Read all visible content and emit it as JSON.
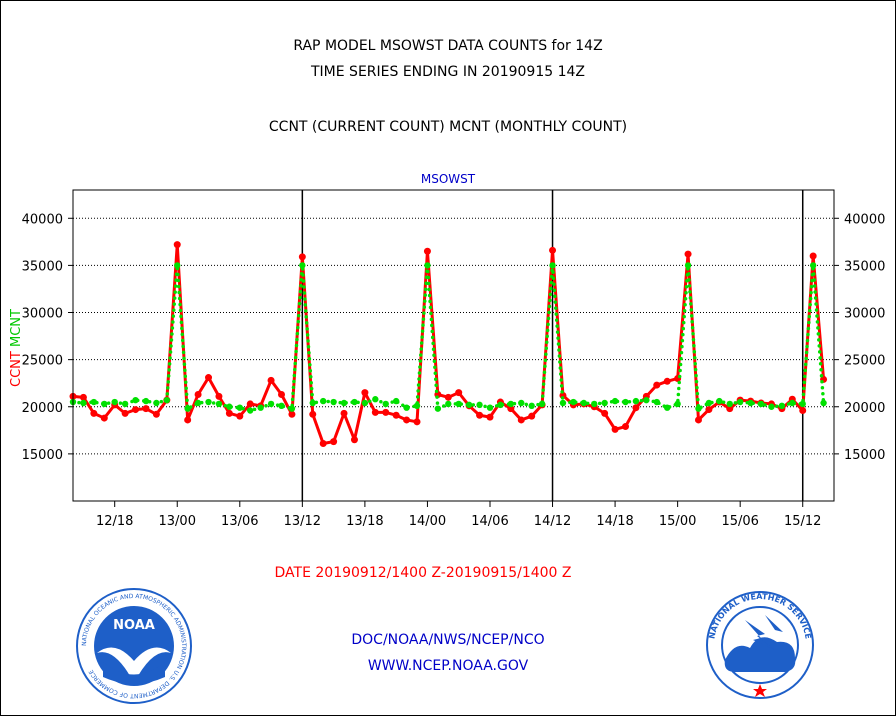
{
  "chart_data": {
    "type": "line",
    "title": [
      "RAP MODEL MSOWST DATA COUNTS for 14Z",
      "TIME SERIES ENDING IN 20190915 14Z"
    ],
    "subtitle": "CCNT (CURRENT COUNT) MCNT (MONTHLY COUNT)",
    "plot_label": "MSOWST",
    "ylabel_ccnt": "CCNT",
    "ylabel_mcnt": "MCNT",
    "xlabel": "DATE 20190912/1400 Z-20190915/1400 Z",
    "ylim": [
      10000,
      43000
    ],
    "yticks": [
      15000,
      20000,
      25000,
      30000,
      35000,
      40000
    ],
    "ytick_labels": [
      "15000",
      "20000",
      "25000",
      "30000",
      "35000",
      "40000"
    ],
    "xlim": [
      14,
      87
    ],
    "xticks": [
      18,
      24,
      30,
      36,
      42,
      48,
      54,
      60,
      66,
      72,
      78,
      84
    ],
    "xtick_labels": [
      "12/18",
      "13/00",
      "13/06",
      "13/12",
      "13/18",
      "14/00",
      "14/06",
      "14/12",
      "14/18",
      "15/00",
      "15/06",
      "15/12"
    ],
    "day_boundaries": [
      36,
      60,
      84
    ],
    "grid": true,
    "series": [
      {
        "name": "CCNT",
        "color": "#ff0000",
        "x": [
          14,
          15,
          16,
          17,
          18,
          19,
          20,
          21,
          22,
          23,
          24,
          25,
          26,
          27,
          28,
          29,
          30,
          31,
          32,
          33,
          34,
          35,
          36,
          37,
          38,
          39,
          40,
          41,
          42,
          43,
          44,
          45,
          46,
          47,
          48,
          49,
          50,
          51,
          52,
          53,
          54,
          55,
          56,
          57,
          58,
          59,
          60,
          61,
          62,
          63,
          64,
          65,
          66,
          67,
          68,
          69,
          70,
          71,
          72,
          73,
          74,
          75,
          76,
          77,
          78,
          79,
          80,
          81,
          82,
          83,
          84,
          85,
          86
        ],
        "values": [
          21100,
          21000,
          19300,
          18800,
          20200,
          19300,
          19700,
          19800,
          19200,
          20700,
          37200,
          18600,
          21300,
          23100,
          21100,
          19300,
          19000,
          20300,
          20100,
          22800,
          21300,
          19200,
          35900,
          19200,
          16100,
          16300,
          19300,
          16500,
          21500,
          19400,
          19400,
          19100,
          18600,
          18400,
          36500,
          21300,
          21000,
          21500,
          20100,
          19100,
          18900,
          20500,
          19800,
          18600,
          19000,
          20200,
          36600,
          21200,
          20200,
          20300,
          20000,
          19300,
          17600,
          17900,
          19900,
          21100,
          22300,
          22700,
          23000,
          36200,
          18600,
          19700,
          20500,
          19800,
          20700,
          20600,
          20400,
          20300,
          19800,
          20800,
          19600,
          36000,
          22900
        ]
      },
      {
        "name": "MCNT",
        "color": "#00e000",
        "x": [
          14,
          15,
          16,
          17,
          18,
          19,
          20,
          21,
          22,
          23,
          24,
          25,
          26,
          27,
          28,
          29,
          30,
          31,
          32,
          33,
          34,
          35,
          36,
          37,
          38,
          39,
          40,
          41,
          42,
          43,
          44,
          45,
          46,
          47,
          48,
          49,
          50,
          51,
          52,
          53,
          54,
          55,
          56,
          57,
          58,
          59,
          60,
          61,
          62,
          63,
          64,
          65,
          66,
          67,
          68,
          69,
          70,
          71,
          72,
          73,
          74,
          75,
          76,
          77,
          78,
          79,
          80,
          81,
          82,
          83,
          84,
          85,
          86
        ],
        "values": [
          20500,
          20400,
          20500,
          20300,
          20500,
          20300,
          20700,
          20600,
          20400,
          20700,
          35000,
          19800,
          20400,
          20500,
          20300,
          20000,
          19900,
          19600,
          19900,
          20300,
          20100,
          19800,
          35000,
          20400,
          20600,
          20500,
          20400,
          20500,
          20400,
          20800,
          20300,
          20600,
          19900,
          20100,
          35000,
          19800,
          20300,
          20300,
          20200,
          20200,
          19900,
          20200,
          20300,
          20400,
          20100,
          20300,
          35000,
          20400,
          20500,
          20400,
          20300,
          20400,
          20600,
          20500,
          20600,
          20700,
          20500,
          19900,
          20300,
          35000,
          19800,
          20400,
          20600,
          20300,
          20500,
          20400,
          20300,
          20000,
          20100,
          20400,
          20300,
          35000,
          20400
        ]
      }
    ]
  },
  "footer": {
    "line1": "DOC/NOAA/NWS/NCEP/NCO",
    "line2": "WWW.NCEP.NOAA.GOV"
  },
  "logos": {
    "noaa": {
      "name": "noaa-logo",
      "center_text": "NOAA",
      "ring_text": "NATIONAL OCEANIC AND ATMOSPHERIC ADMINISTRATION  U.S. DEPARTMENT OF COMMERCE",
      "primary_color": "#1e5fc8"
    },
    "nws": {
      "name": "nws-logo",
      "ring_text": "NATIONAL WEATHER SERVICE",
      "primary_color": "#1e5fc8",
      "accent_color": "#ff0000"
    }
  }
}
